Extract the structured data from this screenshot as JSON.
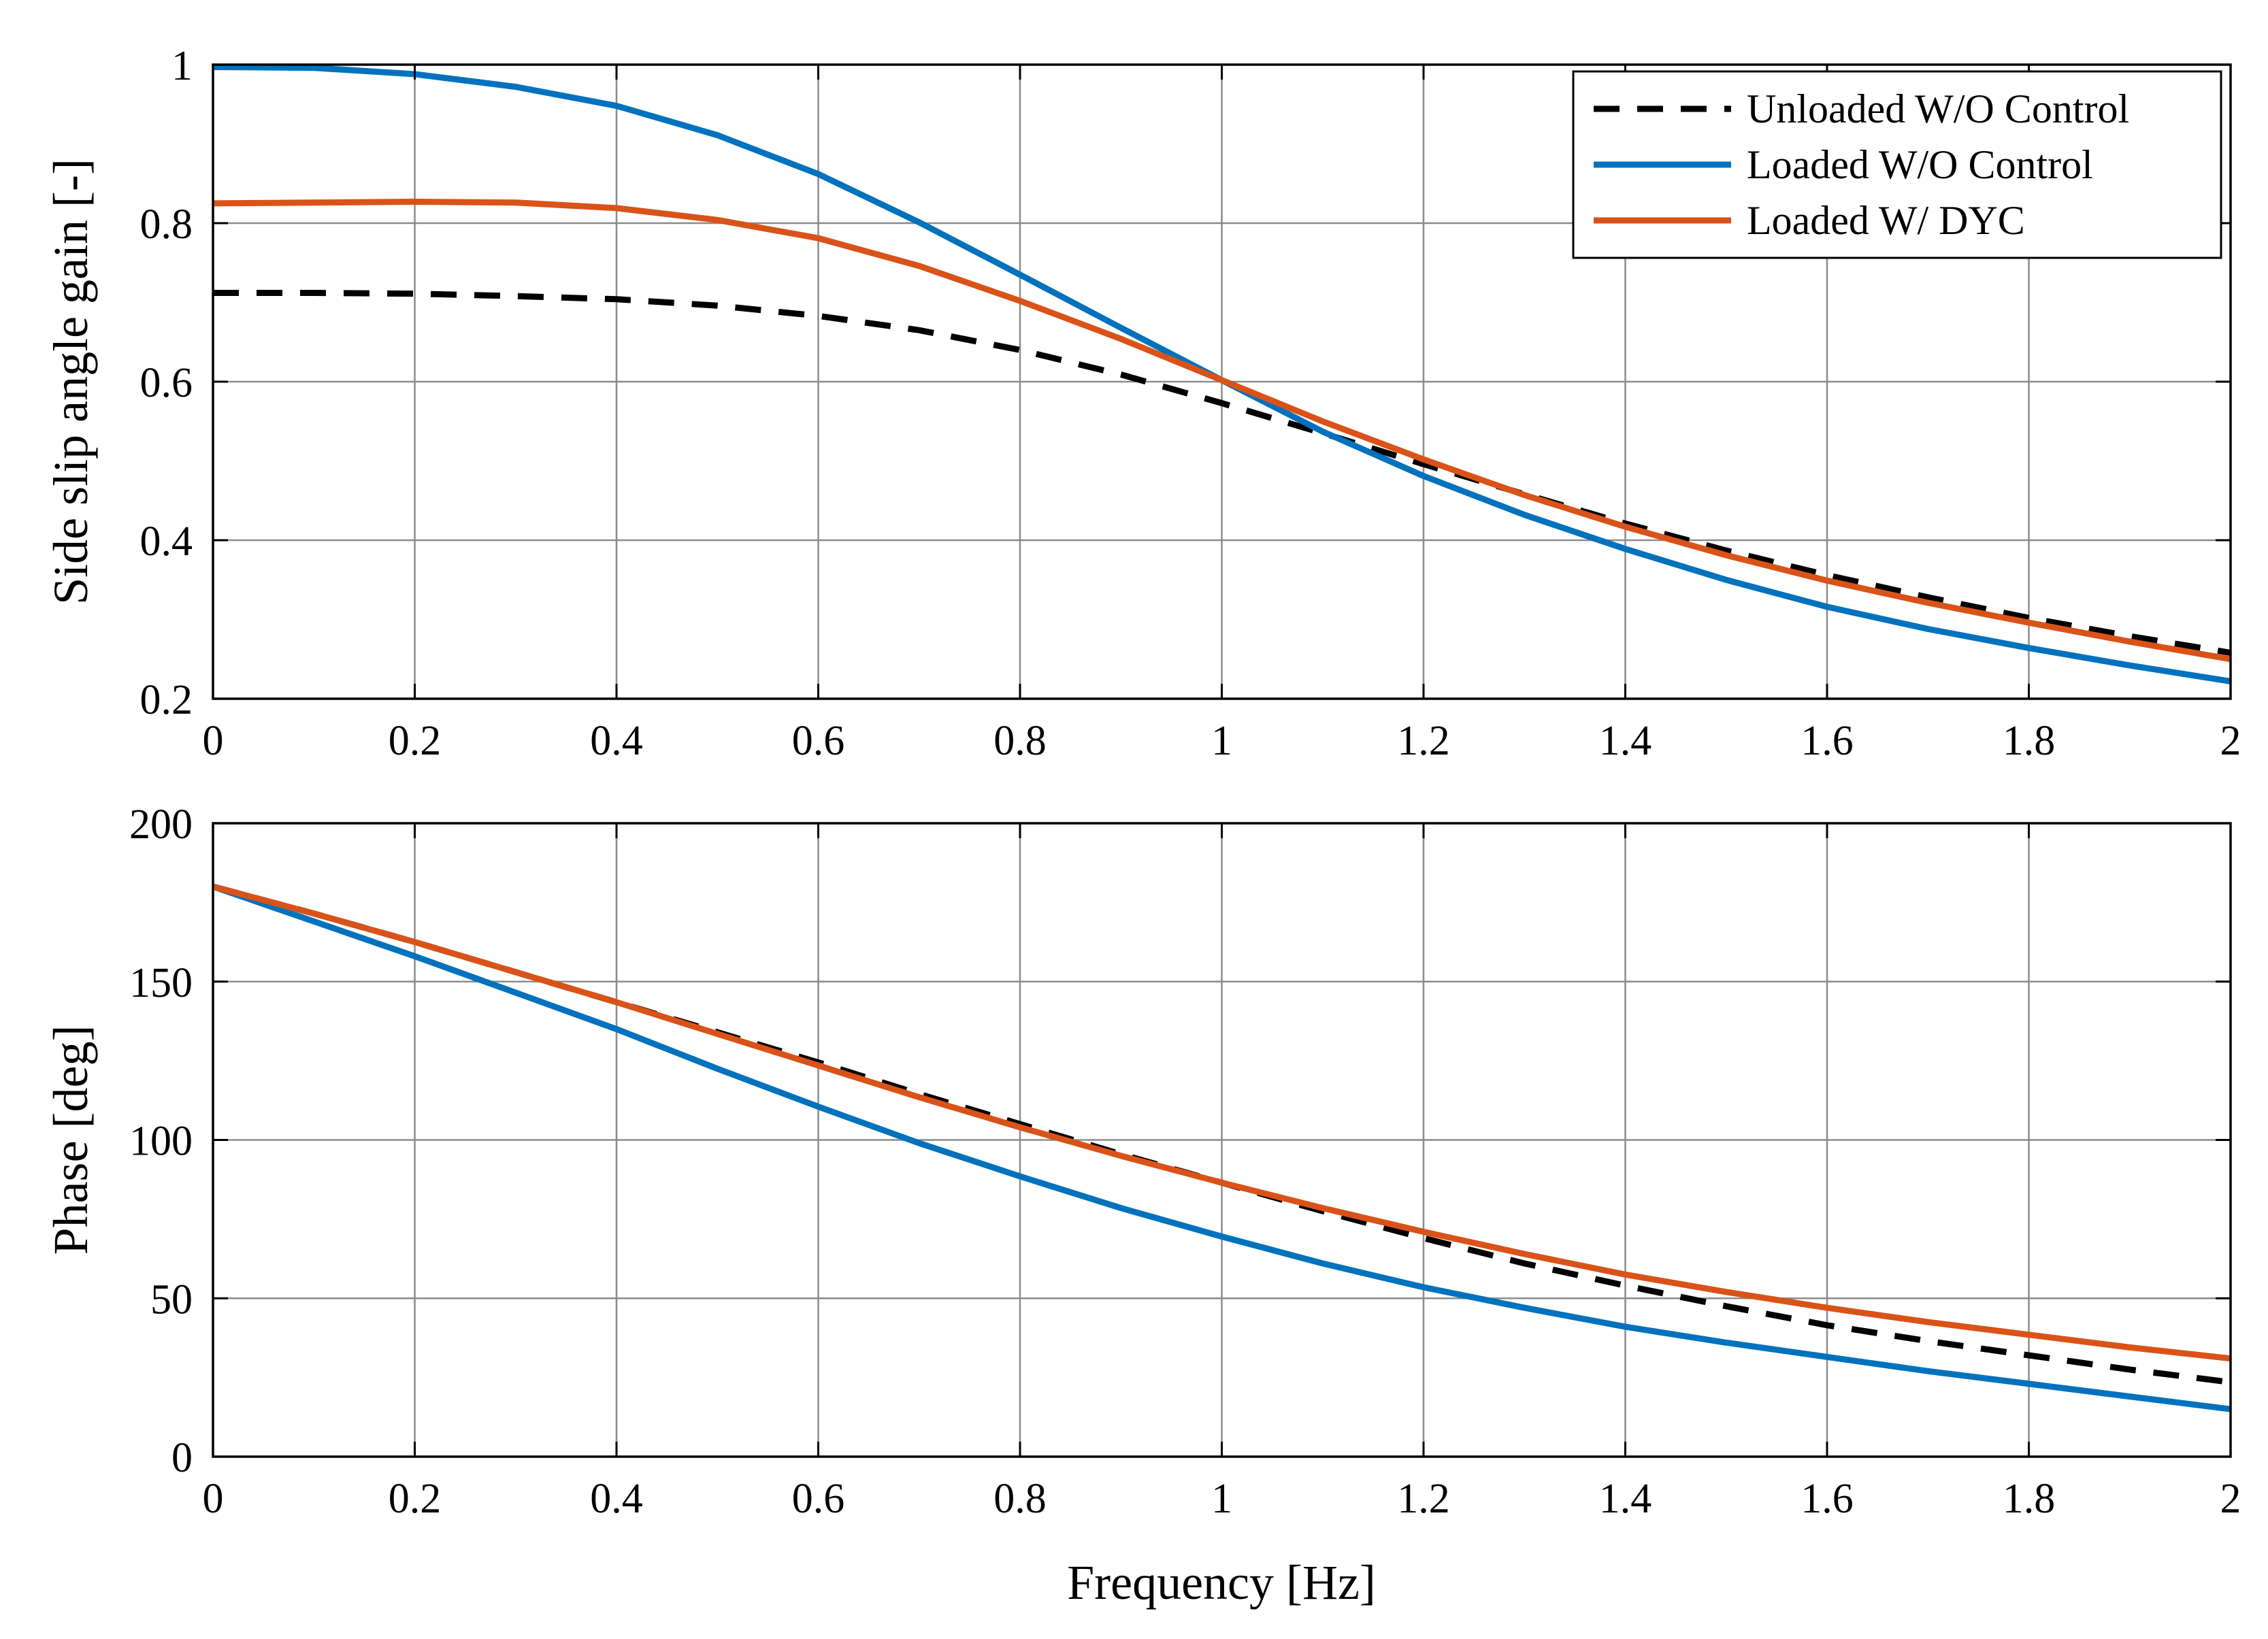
{
  "figure": {
    "xlabel": "Frequency [Hz]"
  },
  "legend": {
    "placement": "top-right",
    "entries": [
      {
        "label": "Unloaded W/O Control",
        "color": "#000000",
        "dash": true
      },
      {
        "label": "Loaded W/O Control",
        "color": "#0072BD",
        "dash": false
      },
      {
        "label": "Loaded W/ DYC",
        "color": "#D95319",
        "dash": false
      }
    ]
  },
  "chart_data": [
    {
      "type": "line",
      "title": "",
      "xlabel": "",
      "ylabel": "Side slip angle gain [-]",
      "xlim": [
        0,
        2
      ],
      "ylim": [
        0.2,
        1
      ],
      "grid": true,
      "x_ticks": [
        "0",
        "0.2",
        "0.4",
        "0.6",
        "0.8",
        "1",
        "1.2",
        "1.4",
        "1.6",
        "1.8",
        "2"
      ],
      "y_ticks": [
        "0.2",
        "0.4",
        "0.6",
        "0.8",
        "1"
      ],
      "x_tick_values": [
        0,
        0.2,
        0.4,
        0.6,
        0.8,
        1,
        1.2,
        1.4,
        1.6,
        1.8,
        2
      ],
      "y_tick_values": [
        0.2,
        0.4,
        0.6,
        0.8,
        1
      ],
      "x": [
        0,
        0.1,
        0.2,
        0.3,
        0.4,
        0.5,
        0.6,
        0.7,
        0.8,
        0.9,
        1.0,
        1.1,
        1.2,
        1.3,
        1.4,
        1.5,
        1.6,
        1.7,
        1.8,
        1.9,
        2.0
      ],
      "series": [
        {
          "name": "Unloaded W/O Control",
          "color": "#000000",
          "dash": true,
          "values": [
            0.712,
            0.712,
            0.711,
            0.708,
            0.704,
            0.696,
            0.683,
            0.665,
            0.64,
            0.609,
            0.573,
            0.535,
            0.496,
            0.458,
            0.421,
            0.387,
            0.356,
            0.328,
            0.302,
            0.279,
            0.258
          ]
        },
        {
          "name": "Loaded W/O Control",
          "color": "#0072BD",
          "dash": false,
          "values": [
            0.997,
            0.996,
            0.988,
            0.972,
            0.948,
            0.911,
            0.862,
            0.801,
            0.735,
            0.668,
            0.602,
            0.537,
            0.481,
            0.432,
            0.389,
            0.35,
            0.316,
            0.288,
            0.264,
            0.242,
            0.222
          ]
        },
        {
          "name": "Loaded W/ DYC",
          "color": "#D95319",
          "dash": false,
          "values": [
            0.825,
            0.826,
            0.827,
            0.826,
            0.819,
            0.804,
            0.781,
            0.746,
            0.702,
            0.654,
            0.602,
            0.55,
            0.502,
            0.457,
            0.417,
            0.381,
            0.349,
            0.321,
            0.296,
            0.272,
            0.25
          ]
        }
      ]
    },
    {
      "type": "line",
      "title": "",
      "xlabel": "Frequency [Hz]",
      "ylabel": "Phase [deg]",
      "xlim": [
        0,
        2
      ],
      "ylim": [
        0,
        200
      ],
      "grid": true,
      "x_ticks": [
        "0",
        "0.2",
        "0.4",
        "0.6",
        "0.8",
        "1",
        "1.2",
        "1.4",
        "1.6",
        "1.8",
        "2"
      ],
      "y_ticks": [
        "0",
        "50",
        "100",
        "150",
        "200"
      ],
      "x_tick_values": [
        0,
        0.2,
        0.4,
        0.6,
        0.8,
        1,
        1.2,
        1.4,
        1.6,
        1.8,
        2
      ],
      "y_tick_values": [
        0,
        50,
        100,
        150,
        200
      ],
      "x": [
        0,
        0.1,
        0.2,
        0.3,
        0.4,
        0.5,
        0.6,
        0.7,
        0.8,
        0.9,
        1.0,
        1.1,
        1.2,
        1.3,
        1.4,
        1.5,
        1.6,
        1.7,
        1.8,
        1.9,
        2.0
      ],
      "series": [
        {
          "name": "Unloaded W/O Control",
          "color": "#000000",
          "dash": true,
          "values": [
            180,
            171.5,
            162.5,
            153,
            143.5,
            134,
            124.5,
            114.5,
            105,
            95.5,
            86.5,
            77.5,
            69,
            61,
            54,
            47.5,
            41.5,
            36.5,
            32,
            27.5,
            23.5
          ]
        },
        {
          "name": "Loaded W/O Control",
          "color": "#0072BD",
          "dash": false,
          "values": [
            180,
            169,
            158,
            146.5,
            135,
            122.5,
            110.5,
            99,
            88.5,
            78.5,
            69.5,
            61,
            53.5,
            47,
            41,
            36,
            31.5,
            27,
            23,
            19,
            15
          ]
        },
        {
          "name": "Loaded W/ DYC",
          "color": "#D95319",
          "dash": false,
          "values": [
            180,
            171.5,
            162.5,
            153,
            143.5,
            133.5,
            123.5,
            113.5,
            104,
            95,
            86.5,
            78.5,
            71,
            64,
            57.5,
            52,
            47,
            42.5,
            38.5,
            34.5,
            31
          ]
        }
      ]
    }
  ]
}
